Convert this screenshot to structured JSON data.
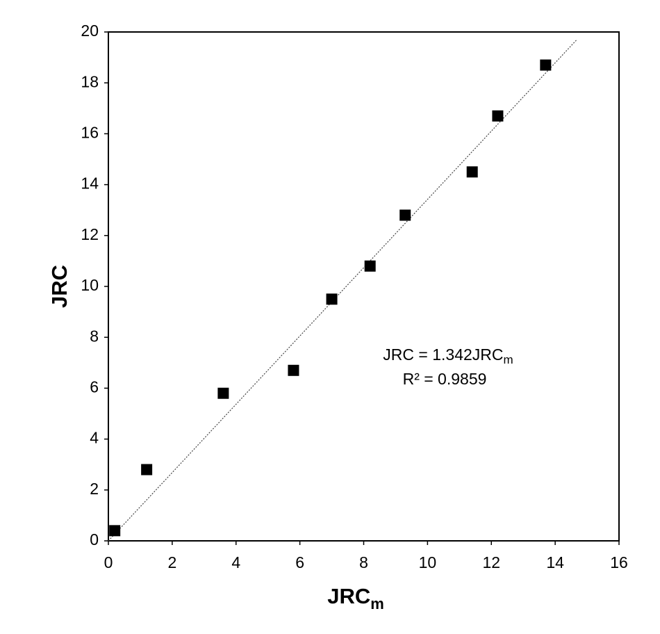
{
  "chart_data": {
    "type": "scatter",
    "x_label": "JRC",
    "x_label_sub": "m",
    "y_label": "JRC",
    "series": [
      {
        "name": "JRC",
        "color": "#000000",
        "x": [
          0.2,
          1.2,
          3.6,
          5.8,
          7.0,
          8.2,
          9.3,
          11.4,
          12.2,
          13.7
        ],
        "values": [
          0.4,
          2.8,
          5.8,
          6.7,
          9.5,
          10.8,
          12.8,
          14.5,
          16.7,
          18.7
        ]
      }
    ],
    "trendline": {
      "slope": 1.342,
      "label": "JRC = 1.342JRC",
      "label_sub": "m",
      "r2_label": "R² = 0.9859"
    },
    "xlim": [
      0,
      16
    ],
    "xticks": [
      0,
      2,
      4,
      6,
      8,
      10,
      12,
      14,
      16
    ],
    "ylim": [
      0,
      20
    ],
    "yticks": [
      0,
      2,
      4,
      6,
      8,
      10,
      12,
      14,
      16,
      18,
      20
    ]
  }
}
